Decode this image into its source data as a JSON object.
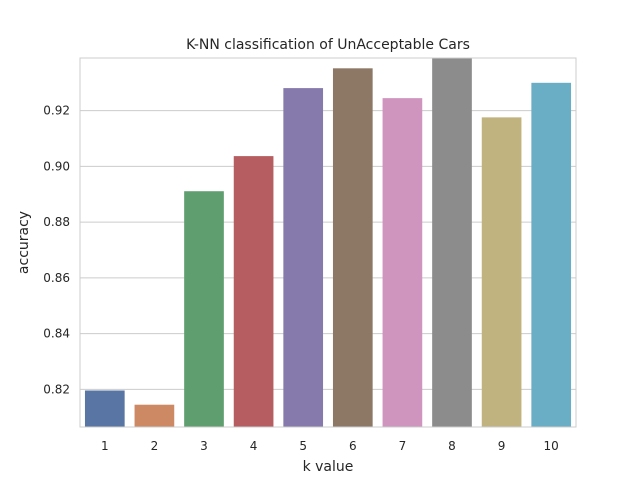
{
  "chart_data": {
    "type": "bar",
    "title": "K-NN classification of  UnAcceptable Cars",
    "xlabel": "k value",
    "ylabel": "accuracy",
    "categories": [
      "1",
      "2",
      "3",
      "4",
      "5",
      "6",
      "7",
      "8",
      "9",
      "10"
    ],
    "values": [
      0.8196,
      0.8145,
      0.8911,
      0.9037,
      0.9281,
      0.9352,
      0.9245,
      0.9389,
      0.9176,
      0.93
    ],
    "ylim": [
      0.8065,
      0.9389
    ],
    "yticks": [
      "0.82",
      "0.84",
      "0.86",
      "0.88",
      "0.90",
      "0.92"
    ],
    "grid": true,
    "legend": "none",
    "colors": [
      "#5975a4",
      "#cc8963",
      "#5f9e6e",
      "#b55d60",
      "#857aab",
      "#8d7866",
      "#d095bf",
      "#8c8c8c",
      "#c1b37f",
      "#6aaec5"
    ]
  }
}
